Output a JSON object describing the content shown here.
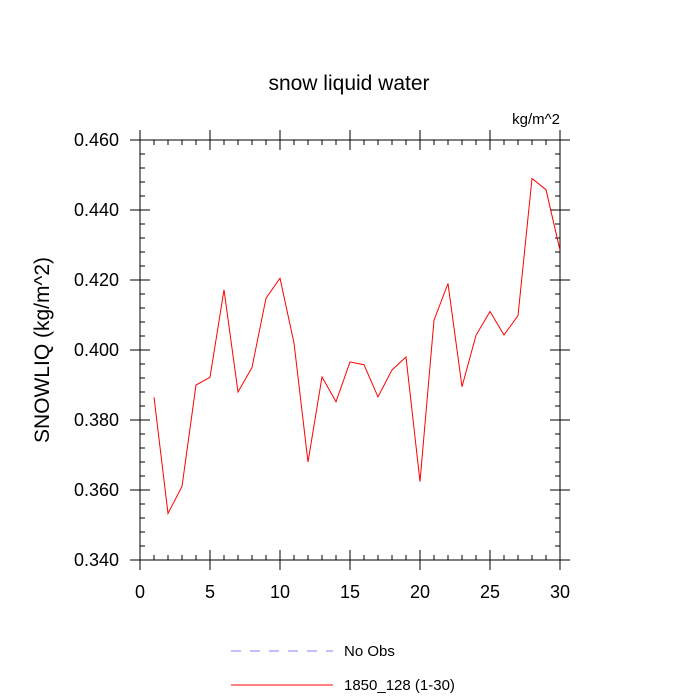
{
  "chart_data": {
    "type": "line",
    "title": "snow liquid water",
    "units": "kg/m^2",
    "ylabel": "SNOWLIQ  (kg/m^2)",
    "xlabel": "",
    "xlim": [
      0,
      30
    ],
    "ylim": [
      0.34,
      0.46
    ],
    "x_ticks": [
      0,
      5,
      10,
      15,
      20,
      25,
      30
    ],
    "x_tick_labels": [
      "0",
      "5",
      "10",
      "15",
      "20",
      "25",
      "30"
    ],
    "y_ticks": [
      0.34,
      0.36,
      0.38,
      0.4,
      0.42,
      0.44,
      0.46
    ],
    "y_tick_labels": [
      "0.340",
      "0.360",
      "0.380",
      "0.400",
      "0.420",
      "0.440",
      "0.460"
    ],
    "grid": false,
    "legend_position": "bottom",
    "series": [
      {
        "name": "1850_128 (1-30)",
        "color": "#ff0000",
        "dash": "solid",
        "x": [
          1,
          2,
          3,
          4,
          5,
          6,
          7,
          8,
          9,
          10,
          11,
          12,
          13,
          14,
          15,
          16,
          17,
          18,
          19,
          20,
          21,
          22,
          23,
          24,
          25,
          26,
          27,
          28,
          29,
          30
        ],
        "values": [
          0.3865,
          0.3533,
          0.361,
          0.39,
          0.3922,
          0.4172,
          0.388,
          0.395,
          0.4148,
          0.4205,
          0.402,
          0.368,
          0.3923,
          0.3852,
          0.3966,
          0.3958,
          0.3866,
          0.3943,
          0.398,
          0.3624,
          0.4085,
          0.419,
          0.3895,
          0.4042,
          0.411,
          0.4043,
          0.4098,
          0.449,
          0.4458,
          0.4285
        ]
      }
    ],
    "legend": [
      {
        "label": "No Obs",
        "color": "#8080ff",
        "dash": "dashed"
      },
      {
        "label": "1850_128 (1-30)",
        "color": "#ff0000",
        "dash": "solid"
      }
    ]
  }
}
